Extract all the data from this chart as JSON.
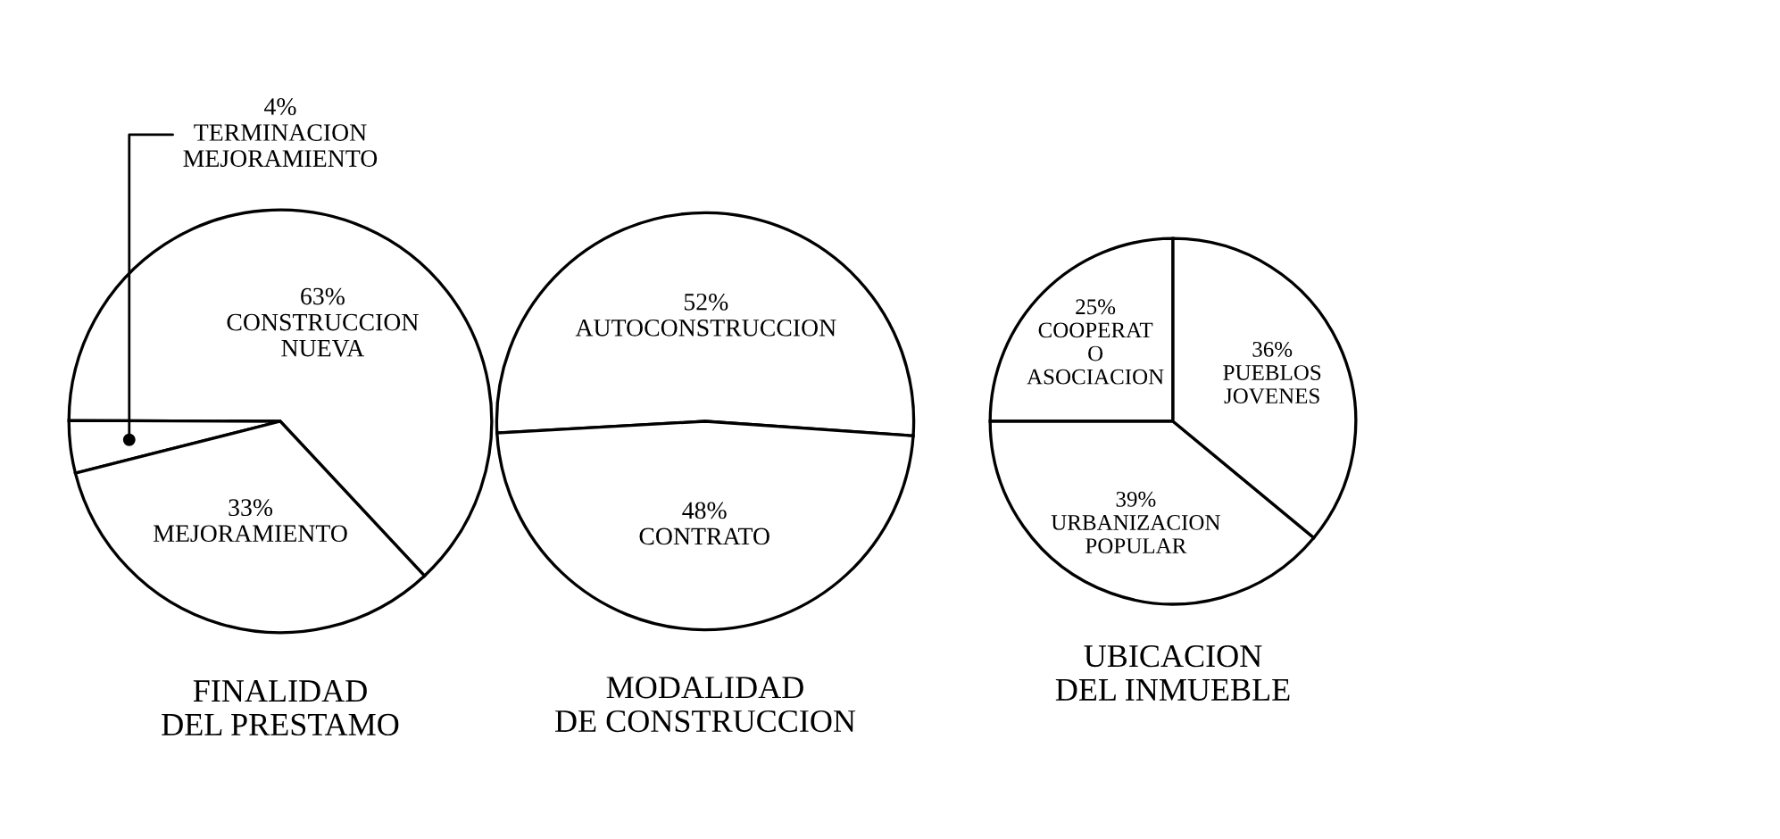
{
  "chart_data": [
    {
      "type": "pie",
      "title": "FINALIDAD\nDEL PRESTAMO",
      "categories": [
        "CONSTRUCCION\nNUEVA",
        "TERMINACION\nMEJORAMIENTO",
        "MEJORAMIENTO"
      ],
      "values": [
        63,
        4,
        33
      ],
      "value_labels": [
        "63%",
        "4%",
        "33%"
      ],
      "colors": [
        "#ffffff",
        "#ffffff",
        "#ffffff"
      ]
    },
    {
      "type": "pie",
      "title": "MODALIDAD\nDE CONSTRUCCION",
      "categories": [
        "AUTOCONSTRUCCION",
        "CONTRATO"
      ],
      "values": [
        52,
        48
      ],
      "value_labels": [
        "52%",
        "48%"
      ],
      "colors": [
        "#ffffff",
        "#ffffff"
      ]
    },
    {
      "type": "pie",
      "title": "UBICACION\nDEL INMUEBLE",
      "categories": [
        "COOPERAT\nO\nASOCIACION",
        "URBANIZACION\nPOPULAR",
        "PUEBLOS\nJOVENES"
      ],
      "values": [
        25,
        39,
        36
      ],
      "value_labels": [
        "25%",
        "39%",
        "36%"
      ],
      "colors": [
        "#ffffff",
        "#ffffff",
        "#ffffff"
      ]
    }
  ]
}
